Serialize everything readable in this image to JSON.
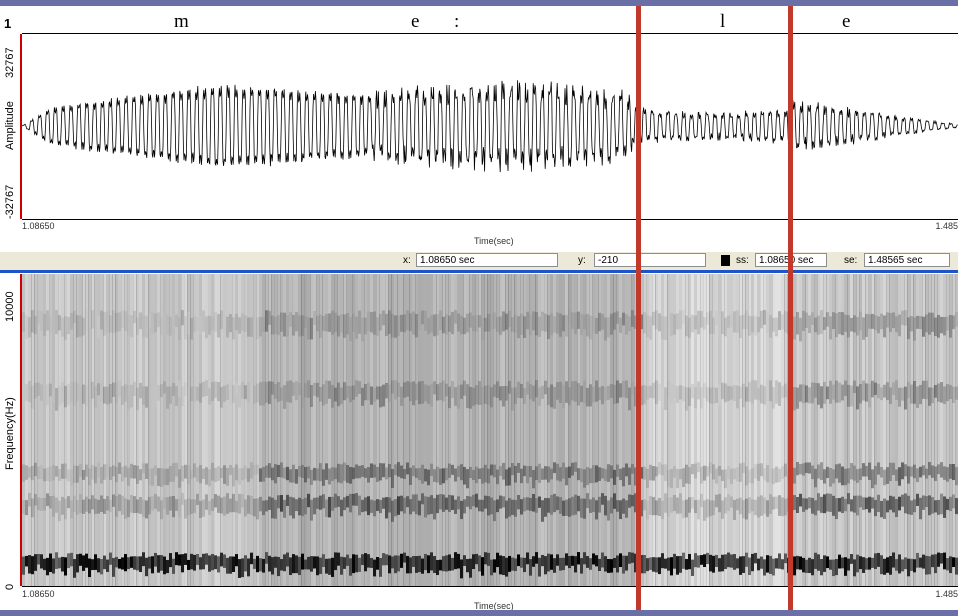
{
  "label_tier": {
    "number": "1",
    "segments": [
      "m",
      "e",
      ":",
      "l",
      "e"
    ]
  },
  "waveform": {
    "ylabel": "Amplitude",
    "ymax": "32767",
    "ymin": "-32767",
    "xstart": "1.08650",
    "xend": "1.485",
    "xlabel": "Time(sec)"
  },
  "status_bar": {
    "x_label": "x:",
    "x_value": "1.08650 sec",
    "y_label": "y:",
    "y_value": "-210",
    "ss_label": "ss:",
    "ss_value": "1.08650 sec",
    "se_label": "se:",
    "se_value": "1.48565 sec"
  },
  "spectrogram": {
    "ylabel": "Frequency(Hz)",
    "ymax": "10000",
    "ymin": "0",
    "xstart": "1.08650",
    "xend": "1.485",
    "xlabel": "Time(sec)"
  },
  "colors": {
    "frame": "#6a6fa6",
    "cursor": "#c0392b",
    "separator": "#1f54c9",
    "axis_tick": "#cc0000"
  }
}
